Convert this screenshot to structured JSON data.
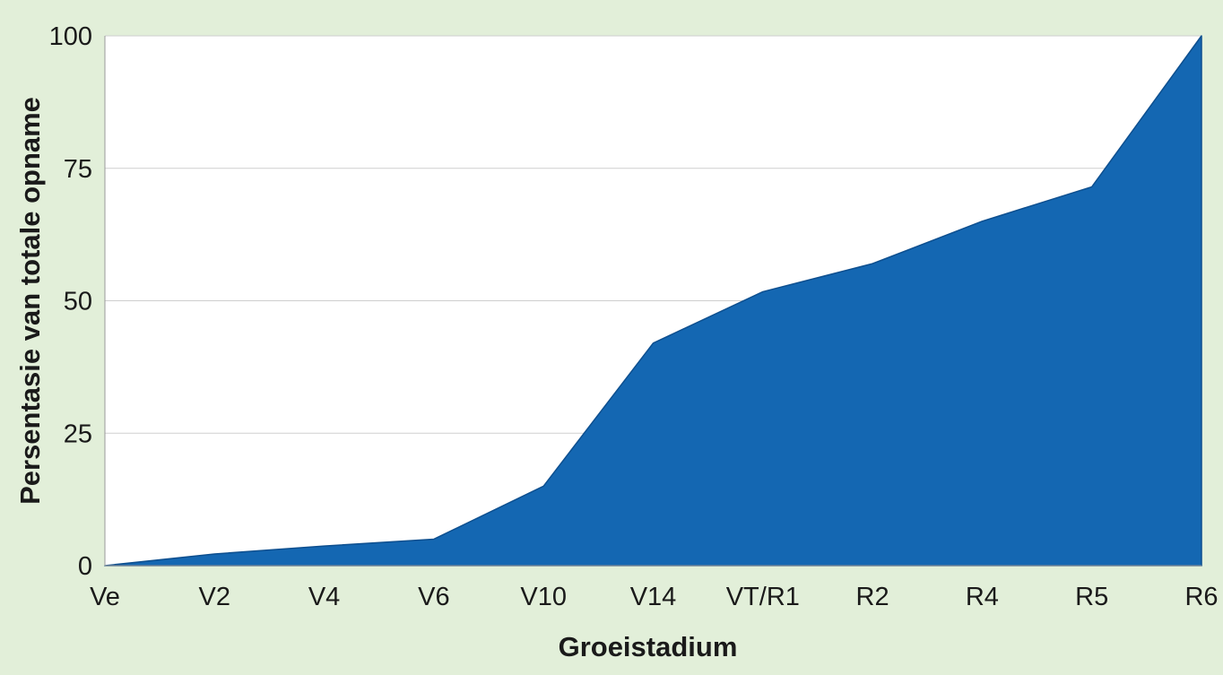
{
  "colors": {
    "background": "#e2efd9",
    "plot_background": "#ffffff",
    "area_fill": "#1467b2",
    "area_stroke": "#0d4f8f",
    "gridline": "#cfcfcf",
    "axis_line": "#9a9a9a"
  },
  "chart_data": {
    "type": "area",
    "title": "",
    "xlabel": "Groeistadium",
    "ylabel": "Persentasie van totale opname",
    "categories": [
      "Ve",
      "V2",
      "V4",
      "V6",
      "V10",
      "V14",
      "VT/R1",
      "R2",
      "R4",
      "R5",
      "R6"
    ],
    "series": [
      {
        "values": [
          0,
          2.2,
          3.7,
          5,
          15,
          42,
          51.7,
          57,
          65,
          71.5,
          100
        ]
      }
    ],
    "ylim": [
      0,
      100
    ],
    "yticks": [
      0,
      25,
      50,
      75,
      100
    ],
    "grid": true,
    "legend": "none"
  }
}
